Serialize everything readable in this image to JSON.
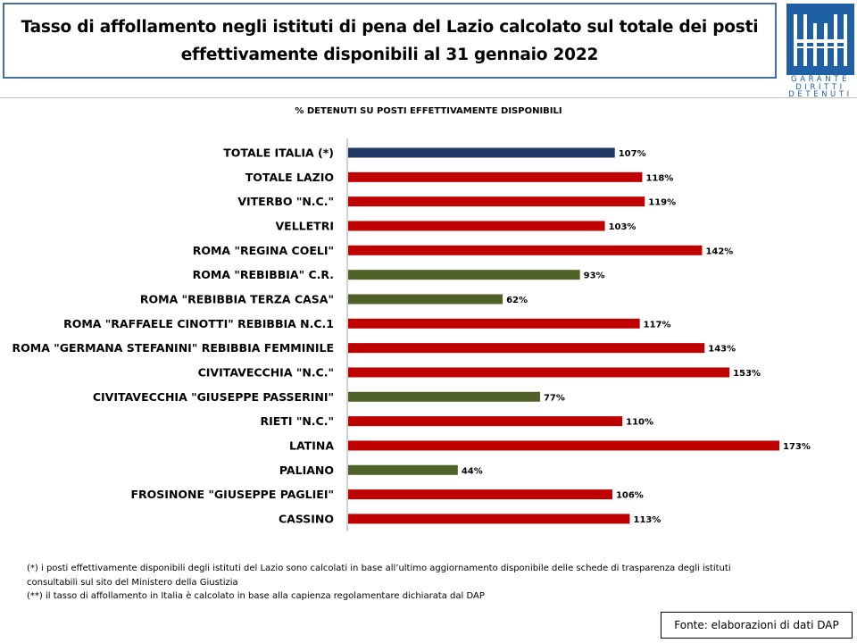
{
  "header": {
    "title_line1": "Tasso di affollamento negli istituti di pena del Lazio calcolato sul totale dei posti",
    "title_line2": "effettivamente disponibili al 31 gennaio 2022"
  },
  "logo": {
    "icon": "garante-logo-icon",
    "line1": "GARANTE",
    "line2": "DIRITTI",
    "line3": "DETENUTI",
    "color": "#1f5fa3"
  },
  "chart_data": {
    "type": "bar",
    "orientation": "horizontal",
    "title": "% DETENUTI SU POSTI EFFETTIVAMENTE DISPONIBILI",
    "categories": [
      "TOTALE ITALIA (*)",
      "TOTALE LAZIO",
      "VITERBO \"N.C.\"",
      "VELLETRI",
      "ROMA \"REGINA COELI\"",
      "ROMA \"REBIBBIA\" C.R.",
      "ROMA \"REBIBBIA TERZA CASA\"",
      "ROMA \"RAFFAELE CINOTTI\" REBIBBIA N.C.1",
      "ROMA \"GERMANA STEFANINI\" REBIBBIA FEMMINILE",
      "CIVITAVECCHIA \"N.C.\"",
      "CIVITAVECCHIA \"GIUSEPPE PASSERINI\"",
      "RIETI \"N.C.\"",
      "LATINA",
      "PALIANO",
      "FROSINONE \"GIUSEPPE PAGLIEI\"",
      "CASSINO"
    ],
    "values": [
      107,
      118,
      119,
      103,
      142,
      93,
      62,
      117,
      143,
      153,
      77,
      110,
      173,
      44,
      106,
      113
    ],
    "value_labels": [
      "107%",
      "118%",
      "119%",
      "103%",
      "142%",
      "93%",
      "62%",
      "117%",
      "143%",
      "153%",
      "77%",
      "110%",
      "173%",
      "44%",
      "106%",
      "113%"
    ],
    "colors": [
      "#1f3864",
      "#c00000",
      "#c00000",
      "#c00000",
      "#c00000",
      "#4f6228",
      "#4f6228",
      "#c00000",
      "#c00000",
      "#c00000",
      "#4f6228",
      "#c00000",
      "#c00000",
      "#4f6228",
      "#c00000",
      "#c00000"
    ],
    "xlim": [
      0,
      180
    ],
    "grid": false,
    "legend": "none"
  },
  "footnotes": {
    "note1_line1": "(*) i posti effettivamente disponibili  degli istituti del Lazio sono  calcolati in base all’ultimo aggiornamento disponibile  delle schede  di trasparenza degli istituti",
    "note1_line2": "consultabili sul sito del Ministero della Giustizia",
    "note2": "(**) il tasso di affollamento  in Italia è calcolato in base alla capienza regolamentare dichiarata dal DAP"
  },
  "source": {
    "label": "Fonte: elaborazioni di dati DAP"
  }
}
